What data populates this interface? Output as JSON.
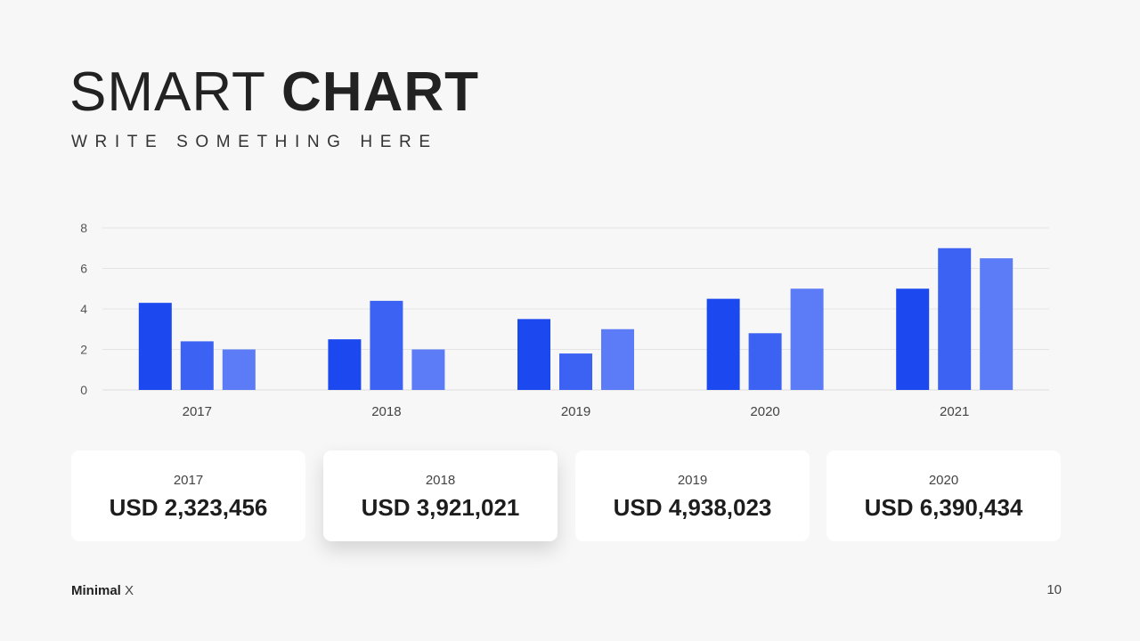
{
  "slide": {
    "title_light": "SMART",
    "title_bold": "CHART",
    "subtitle": "WRITE SOMETHING HERE"
  },
  "chart_data": {
    "type": "bar",
    "categories": [
      "2017",
      "2018",
      "2019",
      "2020",
      "2021"
    ],
    "series": [
      {
        "values": [
          4.3,
          2.5,
          3.5,
          4.5,
          5.0
        ],
        "color": "#1c48f0"
      },
      {
        "values": [
          2.4,
          4.4,
          1.8,
          2.8,
          7.0
        ],
        "color": "#3c62f3"
      },
      {
        "values": [
          2.0,
          2.0,
          3.0,
          5.0,
          6.5
        ],
        "color": "#5b7cf6"
      }
    ],
    "ylim": [
      0,
      8
    ],
    "yticks": [
      "0",
      "2",
      "4",
      "6",
      "8"
    ],
    "grid": true,
    "legend": "none"
  },
  "cards": [
    {
      "year": "2017",
      "value": "USD 2,323,456"
    },
    {
      "year": "2018",
      "value": "USD 3,921,021"
    },
    {
      "year": "2019",
      "value": "USD 4,938,023"
    },
    {
      "year": "2020",
      "value": "USD 6,390,434"
    }
  ],
  "footer": {
    "brand_bold": "Minimal",
    "brand_light": "X",
    "page_number": "10"
  }
}
